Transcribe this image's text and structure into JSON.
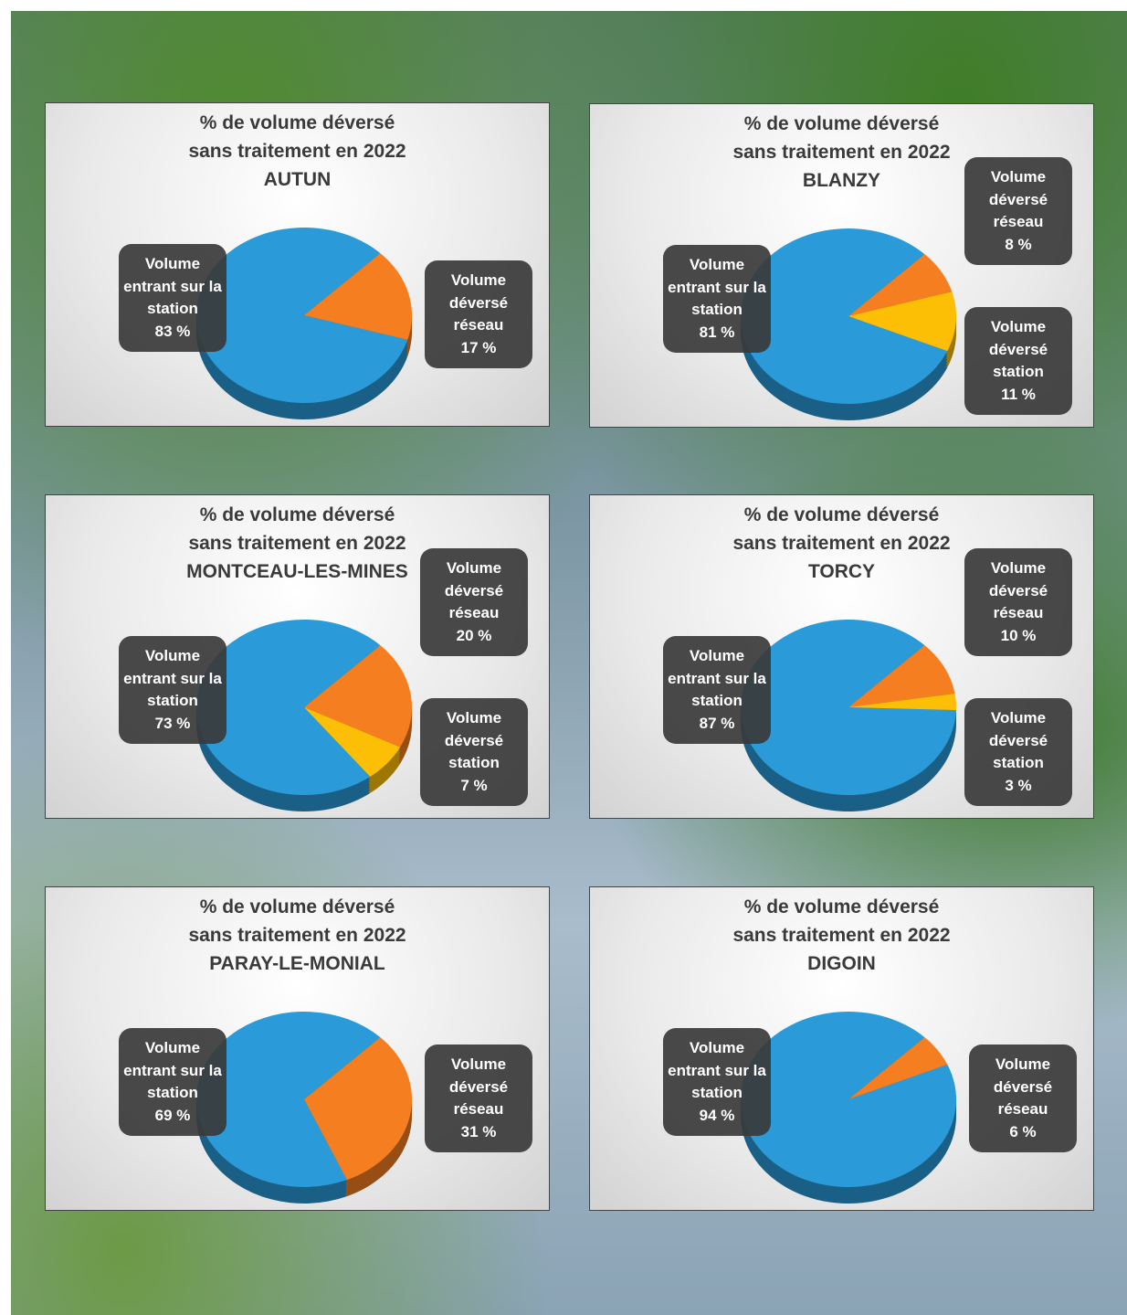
{
  "chart_data": [
    {
      "type": "pie",
      "title": "% de volume déversé sans traitement en 2022",
      "subtitle": "AUTUN",
      "categories": [
        "Volume entrant sur la station",
        "Volume déversé réseau"
      ],
      "values": [
        83,
        17
      ],
      "value_labels": [
        "83 %",
        "17 %"
      ],
      "colors": [
        "#2a9ad8",
        "#f47e20"
      ]
    },
    {
      "type": "pie",
      "title": "% de volume déversé sans traitement en 2022",
      "subtitle": "BLANZY",
      "categories": [
        "Volume entrant sur la station",
        "Volume déversé réseau",
        "Volume déversé station"
      ],
      "values": [
        81,
        8,
        11
      ],
      "value_labels": [
        "81 %",
        "8 %",
        "11 %"
      ],
      "colors": [
        "#2a9ad8",
        "#f47e20",
        "#fdbf05"
      ]
    },
    {
      "type": "pie",
      "title": "% de volume déversé sans traitement en 2022",
      "subtitle": "MONTCEAU-LES-MINES",
      "categories": [
        "Volume entrant sur la station",
        "Volume déversé réseau",
        "Volume déversé station"
      ],
      "values": [
        73,
        20,
        7
      ],
      "value_labels": [
        "73 %",
        "20 %",
        "7 %"
      ],
      "colors": [
        "#2a9ad8",
        "#f47e20",
        "#fdbf05"
      ]
    },
    {
      "type": "pie",
      "title": "% de volume déversé sans traitement en 2022",
      "subtitle": "TORCY",
      "categories": [
        "Volume entrant sur la station",
        "Volume déversé réseau",
        "Volume déversé station"
      ],
      "values": [
        87,
        10,
        3
      ],
      "value_labels": [
        "87 %",
        "10 %",
        "3 %"
      ],
      "colors": [
        "#2a9ad8",
        "#f47e20",
        "#fdbf05"
      ]
    },
    {
      "type": "pie",
      "title": "% de volume déversé sans traitement en 2022",
      "subtitle": "PARAY-LE-MONIAL",
      "categories": [
        "Volume entrant sur la station",
        "Volume déversé réseau"
      ],
      "values": [
        69,
        31
      ],
      "value_labels": [
        "69 %",
        "31 %"
      ],
      "colors": [
        "#2a9ad8",
        "#f47e20"
      ]
    },
    {
      "type": "pie",
      "title": "% de volume déversé sans traitement en 2022",
      "subtitle": "DIGOIN",
      "categories": [
        "Volume entrant sur la station",
        "Volume déversé réseau"
      ],
      "values": [
        94,
        6
      ],
      "value_labels": [
        "94 %",
        "6 %"
      ],
      "colors": [
        "#2a9ad8",
        "#f47e20"
      ]
    }
  ]
}
